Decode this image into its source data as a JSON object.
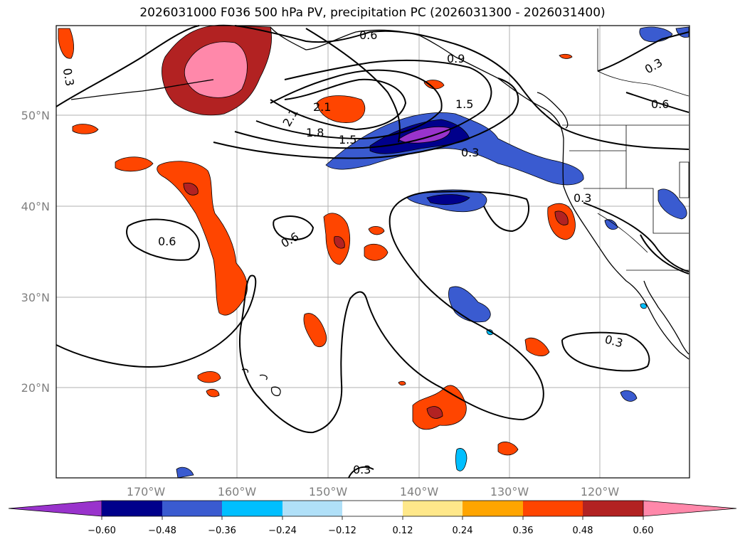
{
  "title": "2026031000 F036 500 hPa PV, precipitation PC (2026031300 - 2026031400)",
  "lon_labels": [
    "170°W",
    "160°W",
    "150°W",
    "140°W",
    "130°W",
    "120°W"
  ],
  "lat_labels": [
    "50°N",
    "40°N",
    "30°N",
    "20°N"
  ],
  "contour_labels": [
    "0.3",
    "0.6",
    "0.9",
    "1.5",
    "1.5",
    "1.8",
    "2.1",
    "2.1",
    "0.6",
    "0.6",
    "0.3",
    "0.3",
    "0.6",
    "0.3",
    "0.3",
    "0.3"
  ],
  "colorbar": {
    "ticks": [
      "−0.60",
      "−0.48",
      "−0.36",
      "−0.24",
      "−0.12",
      "0.12",
      "0.24",
      "0.36",
      "0.48",
      "0.60"
    ],
    "colors": [
      "#9933cc",
      "#00008b",
      "#3a5bd0",
      "#00bfff",
      "#b0e0f8",
      "#ffffff",
      "#ffe88a",
      "#ffa500",
      "#ff4500",
      "#b22222",
      "#ff88aa"
    ]
  },
  "colors": {
    "positive_dark": "#b22222",
    "positive_mid": "#ff4500",
    "positive_light": "#ffa500",
    "positive_top": "#ff88aa",
    "negative_dark": "#00008b",
    "negative_mid": "#3a5bd0",
    "negative_light": "#00bfff",
    "negative_extreme": "#9933cc"
  }
}
